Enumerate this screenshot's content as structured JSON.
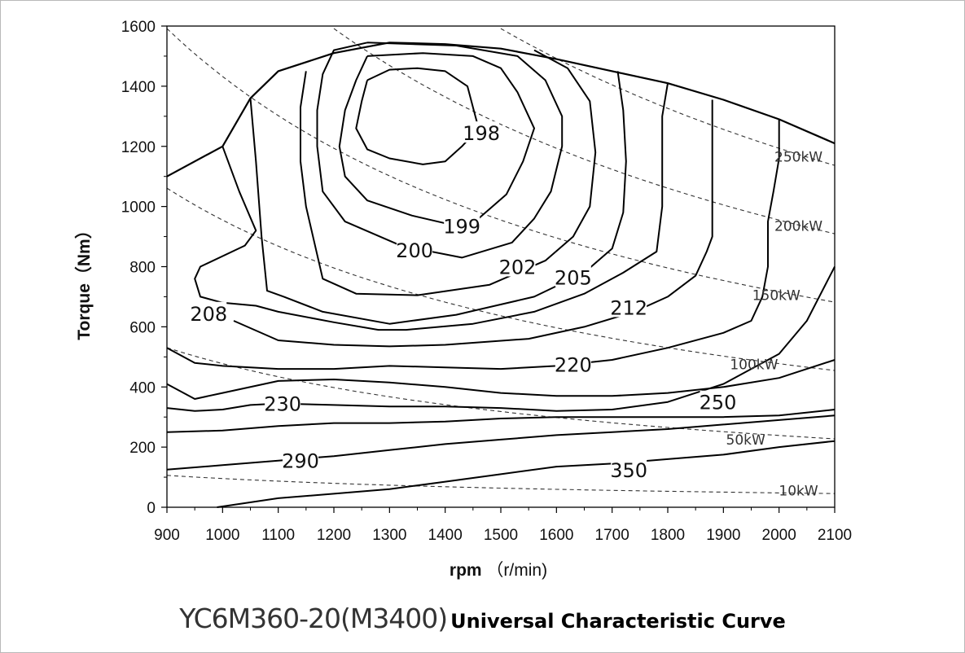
{
  "chart_data": {
    "type": "line",
    "xlabel": "rpm （r/min)",
    "ylabel": "Torque（Nm）",
    "xlim": [
      900,
      2100
    ],
    "ylim": [
      0,
      1600
    ],
    "x_ticks": [
      900,
      1000,
      1100,
      1200,
      1300,
      1400,
      1500,
      1600,
      1700,
      1800,
      1900,
      2000,
      2100
    ],
    "y_ticks": [
      0,
      200,
      400,
      600,
      800,
      1000,
      1200,
      1400,
      1600
    ],
    "grid": false,
    "max_torque_envelope": [
      [
        900,
        1100
      ],
      [
        1000,
        1200
      ],
      [
        1050,
        1360
      ],
      [
        1100,
        1450
      ],
      [
        1200,
        1510
      ],
      [
        1300,
        1545
      ],
      [
        1400,
        1540
      ],
      [
        1500,
        1525
      ],
      [
        1600,
        1490
      ],
      [
        1700,
        1450
      ],
      [
        1800,
        1410
      ],
      [
        1900,
        1355
      ],
      [
        2000,
        1290
      ],
      [
        2100,
        1210
      ]
    ],
    "series": [
      {
        "name": "198",
        "style": "contour",
        "points": [
          [
            1260,
            1420
          ],
          [
            1300,
            1455
          ],
          [
            1350,
            1460
          ],
          [
            1400,
            1450
          ],
          [
            1440,
            1400
          ],
          [
            1450,
            1330
          ],
          [
            1460,
            1260
          ],
          [
            1430,
            1200
          ],
          [
            1400,
            1150
          ],
          [
            1360,
            1140
          ],
          [
            1300,
            1160
          ],
          [
            1260,
            1190
          ],
          [
            1240,
            1260
          ],
          [
            1250,
            1350
          ],
          [
            1260,
            1420
          ]
        ]
      },
      {
        "name": "199",
        "style": "contour",
        "points": [
          [
            1260,
            1500
          ],
          [
            1360,
            1510
          ],
          [
            1450,
            1500
          ],
          [
            1500,
            1460
          ],
          [
            1530,
            1380
          ],
          [
            1560,
            1260
          ],
          [
            1540,
            1150
          ],
          [
            1510,
            1040
          ],
          [
            1460,
            960
          ],
          [
            1410,
            940
          ],
          [
            1340,
            970
          ],
          [
            1260,
            1020
          ],
          [
            1220,
            1100
          ],
          [
            1210,
            1200
          ],
          [
            1220,
            1320
          ],
          [
            1240,
            1420
          ],
          [
            1260,
            1500
          ]
        ]
      },
      {
        "name": "200",
        "style": "contour",
        "points": [
          [
            1260,
            1545
          ],
          [
            1420,
            1535
          ],
          [
            1530,
            1500
          ],
          [
            1580,
            1420
          ],
          [
            1610,
            1300
          ],
          [
            1610,
            1200
          ],
          [
            1590,
            1050
          ],
          [
            1560,
            960
          ],
          [
            1520,
            880
          ],
          [
            1430,
            830
          ],
          [
            1320,
            870
          ],
          [
            1220,
            950
          ],
          [
            1180,
            1050
          ],
          [
            1170,
            1200
          ],
          [
            1170,
            1320
          ],
          [
            1180,
            1440
          ],
          [
            1200,
            1520
          ],
          [
            1260,
            1545
          ]
        ]
      },
      {
        "name": "202",
        "style": "contour",
        "points": [
          [
            1560,
            1520
          ],
          [
            1620,
            1460
          ],
          [
            1660,
            1350
          ],
          [
            1670,
            1180
          ],
          [
            1660,
            1000
          ],
          [
            1630,
            900
          ],
          [
            1580,
            820
          ],
          [
            1480,
            740
          ],
          [
            1350,
            705
          ],
          [
            1240,
            710
          ],
          [
            1180,
            760
          ],
          [
            1150,
            1000
          ],
          [
            1140,
            1150
          ],
          [
            1140,
            1330
          ],
          [
            1150,
            1450
          ]
        ]
      },
      {
        "name": "205",
        "style": "contour",
        "points": [
          [
            1710,
            1450
          ],
          [
            1720,
            1320
          ],
          [
            1725,
            1150
          ],
          [
            1720,
            980
          ],
          [
            1700,
            860
          ],
          [
            1650,
            780
          ],
          [
            1560,
            700
          ],
          [
            1420,
            640
          ],
          [
            1300,
            610
          ],
          [
            1180,
            650
          ],
          [
            1110,
            700
          ],
          [
            1080,
            720
          ],
          [
            1070,
            900
          ],
          [
            1060,
            1150
          ],
          [
            1050,
            1360
          ]
        ]
      },
      {
        "name": "208",
        "style": "contour",
        "points": [
          [
            1000,
            1200
          ],
          [
            1030,
            1050
          ],
          [
            1060,
            920
          ],
          [
            1040,
            870
          ],
          [
            960,
            800
          ],
          [
            950,
            760
          ],
          [
            960,
            700
          ],
          [
            1000,
            680
          ],
          [
            1060,
            670
          ],
          [
            1100,
            650
          ],
          [
            1200,
            615
          ],
          [
            1280,
            590
          ],
          [
            1330,
            590
          ],
          [
            1450,
            610
          ],
          [
            1560,
            650
          ],
          [
            1650,
            710
          ],
          [
            1720,
            780
          ],
          [
            1780,
            850
          ],
          [
            1790,
            1000
          ],
          [
            1790,
            1180
          ],
          [
            1790,
            1300
          ],
          [
            1800,
            1410
          ]
        ]
      },
      {
        "name": "212",
        "style": "contour",
        "points": [
          [
            1020,
            620
          ],
          [
            1100,
            555
          ],
          [
            1200,
            540
          ],
          [
            1300,
            535
          ],
          [
            1400,
            540
          ],
          [
            1550,
            560
          ],
          [
            1650,
            600
          ],
          [
            1740,
            650
          ],
          [
            1800,
            700
          ],
          [
            1850,
            770
          ],
          [
            1870,
            850
          ],
          [
            1880,
            900
          ],
          [
            1880,
            1050
          ],
          [
            1880,
            1200
          ],
          [
            1880,
            1355
          ]
        ]
      },
      {
        "name": "220",
        "style": "contour",
        "points": [
          [
            900,
            530
          ],
          [
            950,
            480
          ],
          [
            1000,
            470
          ],
          [
            1100,
            460
          ],
          [
            1200,
            460
          ],
          [
            1300,
            470
          ],
          [
            1400,
            465
          ],
          [
            1500,
            460
          ],
          [
            1600,
            470
          ],
          [
            1700,
            490
          ],
          [
            1800,
            530
          ],
          [
            1900,
            580
          ],
          [
            1950,
            620
          ],
          [
            1970,
            700
          ],
          [
            1980,
            800
          ],
          [
            1980,
            950
          ],
          [
            1990,
            1050
          ],
          [
            2000,
            1160
          ],
          [
            2000,
            1290
          ]
        ]
      },
      {
        "name": "250",
        "style": "contour",
        "points": [
          [
            900,
            410
          ],
          [
            950,
            360
          ],
          [
            1000,
            380
          ],
          [
            1100,
            420
          ],
          [
            1200,
            425
          ],
          [
            1300,
            415
          ],
          [
            1400,
            400
          ],
          [
            1500,
            380
          ],
          [
            1600,
            370
          ],
          [
            1700,
            370
          ],
          [
            1800,
            380
          ],
          [
            1900,
            400
          ],
          [
            2000,
            430
          ],
          [
            2050,
            460
          ],
          [
            2100,
            490
          ]
        ]
      },
      {
        "name": "230",
        "style": "contour",
        "points": [
          [
            900,
            330
          ],
          [
            950,
            320
          ],
          [
            1000,
            325
          ],
          [
            1050,
            340
          ],
          [
            1100,
            345
          ],
          [
            1200,
            340
          ],
          [
            1300,
            335
          ],
          [
            1400,
            335
          ],
          [
            1500,
            330
          ],
          [
            1600,
            320
          ],
          [
            1700,
            325
          ],
          [
            1800,
            350
          ],
          [
            1900,
            410
          ],
          [
            2000,
            510
          ],
          [
            2050,
            620
          ],
          [
            2100,
            800
          ]
        ]
      },
      {
        "name": "290",
        "style": "contour",
        "points": [
          [
            900,
            250
          ],
          [
            1000,
            255
          ],
          [
            1100,
            270
          ],
          [
            1200,
            280
          ],
          [
            1300,
            280
          ],
          [
            1400,
            285
          ],
          [
            1500,
            295
          ],
          [
            1600,
            300
          ],
          [
            1700,
            300
          ],
          [
            1800,
            300
          ],
          [
            1900,
            300
          ],
          [
            2000,
            305
          ],
          [
            2100,
            325
          ]
        ]
      },
      {
        "name": "350",
        "style": "contour",
        "points": [
          [
            900,
            125
          ],
          [
            1000,
            140
          ],
          [
            1100,
            155
          ],
          [
            1200,
            170
          ],
          [
            1300,
            190
          ],
          [
            1400,
            210
          ],
          [
            1500,
            225
          ],
          [
            1600,
            240
          ],
          [
            1700,
            250
          ],
          [
            1800,
            260
          ],
          [
            1900,
            275
          ],
          [
            2000,
            290
          ],
          [
            2100,
            305
          ]
        ]
      },
      {
        "name": "",
        "style": "contour",
        "points": [
          [
            990,
            0
          ],
          [
            1100,
            30
          ],
          [
            1200,
            45
          ],
          [
            1300,
            60
          ],
          [
            1400,
            85
          ],
          [
            1500,
            110
          ],
          [
            1600,
            135
          ],
          [
            1700,
            145
          ],
          [
            1800,
            160
          ],
          [
            1900,
            175
          ],
          [
            2000,
            200
          ],
          [
            2100,
            220
          ]
        ]
      },
      {
        "name": "250kW",
        "style": "power",
        "kw": 250
      },
      {
        "name": "200kW",
        "style": "power",
        "kw": 200
      },
      {
        "name": "150kW",
        "style": "power",
        "kw": 150
      },
      {
        "name": "100kW",
        "style": "power",
        "kw": 100
      },
      {
        "name": "50kW",
        "style": "power",
        "kw": 50
      },
      {
        "name": "10kW",
        "style": "power",
        "kw": 10
      }
    ],
    "contour_labels": [
      {
        "text": "198",
        "x": 1465,
        "y": 1245
      },
      {
        "text": "199",
        "x": 1430,
        "y": 935
      },
      {
        "text": "200",
        "x": 1345,
        "y": 855
      },
      {
        "text": "202",
        "x": 1530,
        "y": 800
      },
      {
        "text": "205",
        "x": 1630,
        "y": 765
      },
      {
        "text": "208",
        "x": 975,
        "y": 645
      },
      {
        "text": "212",
        "x": 1730,
        "y": 665
      },
      {
        "text": "220",
        "x": 1630,
        "y": 475
      },
      {
        "text": "230",
        "x": 1108,
        "y": 345
      },
      {
        "text": "250",
        "x": 1890,
        "y": 350
      },
      {
        "text": "290",
        "x": 1140,
        "y": 155
      },
      {
        "text": "350",
        "x": 1730,
        "y": 125
      }
    ],
    "power_labels": [
      {
        "text": "250kW",
        "x": 2035,
        "y": 1165
      },
      {
        "text": "200kW",
        "x": 2035,
        "y": 935
      },
      {
        "text": "150kW",
        "x": 1995,
        "y": 705
      },
      {
        "text": "100kW",
        "x": 1955,
        "y": 475
      },
      {
        "text": "50kW",
        "x": 1940,
        "y": 225
      },
      {
        "text": "10kW",
        "x": 2035,
        "y": 55
      }
    ]
  },
  "caption": {
    "model": "YC6M360-20(M3400)",
    "title": "Universal Characteristic Curve"
  }
}
